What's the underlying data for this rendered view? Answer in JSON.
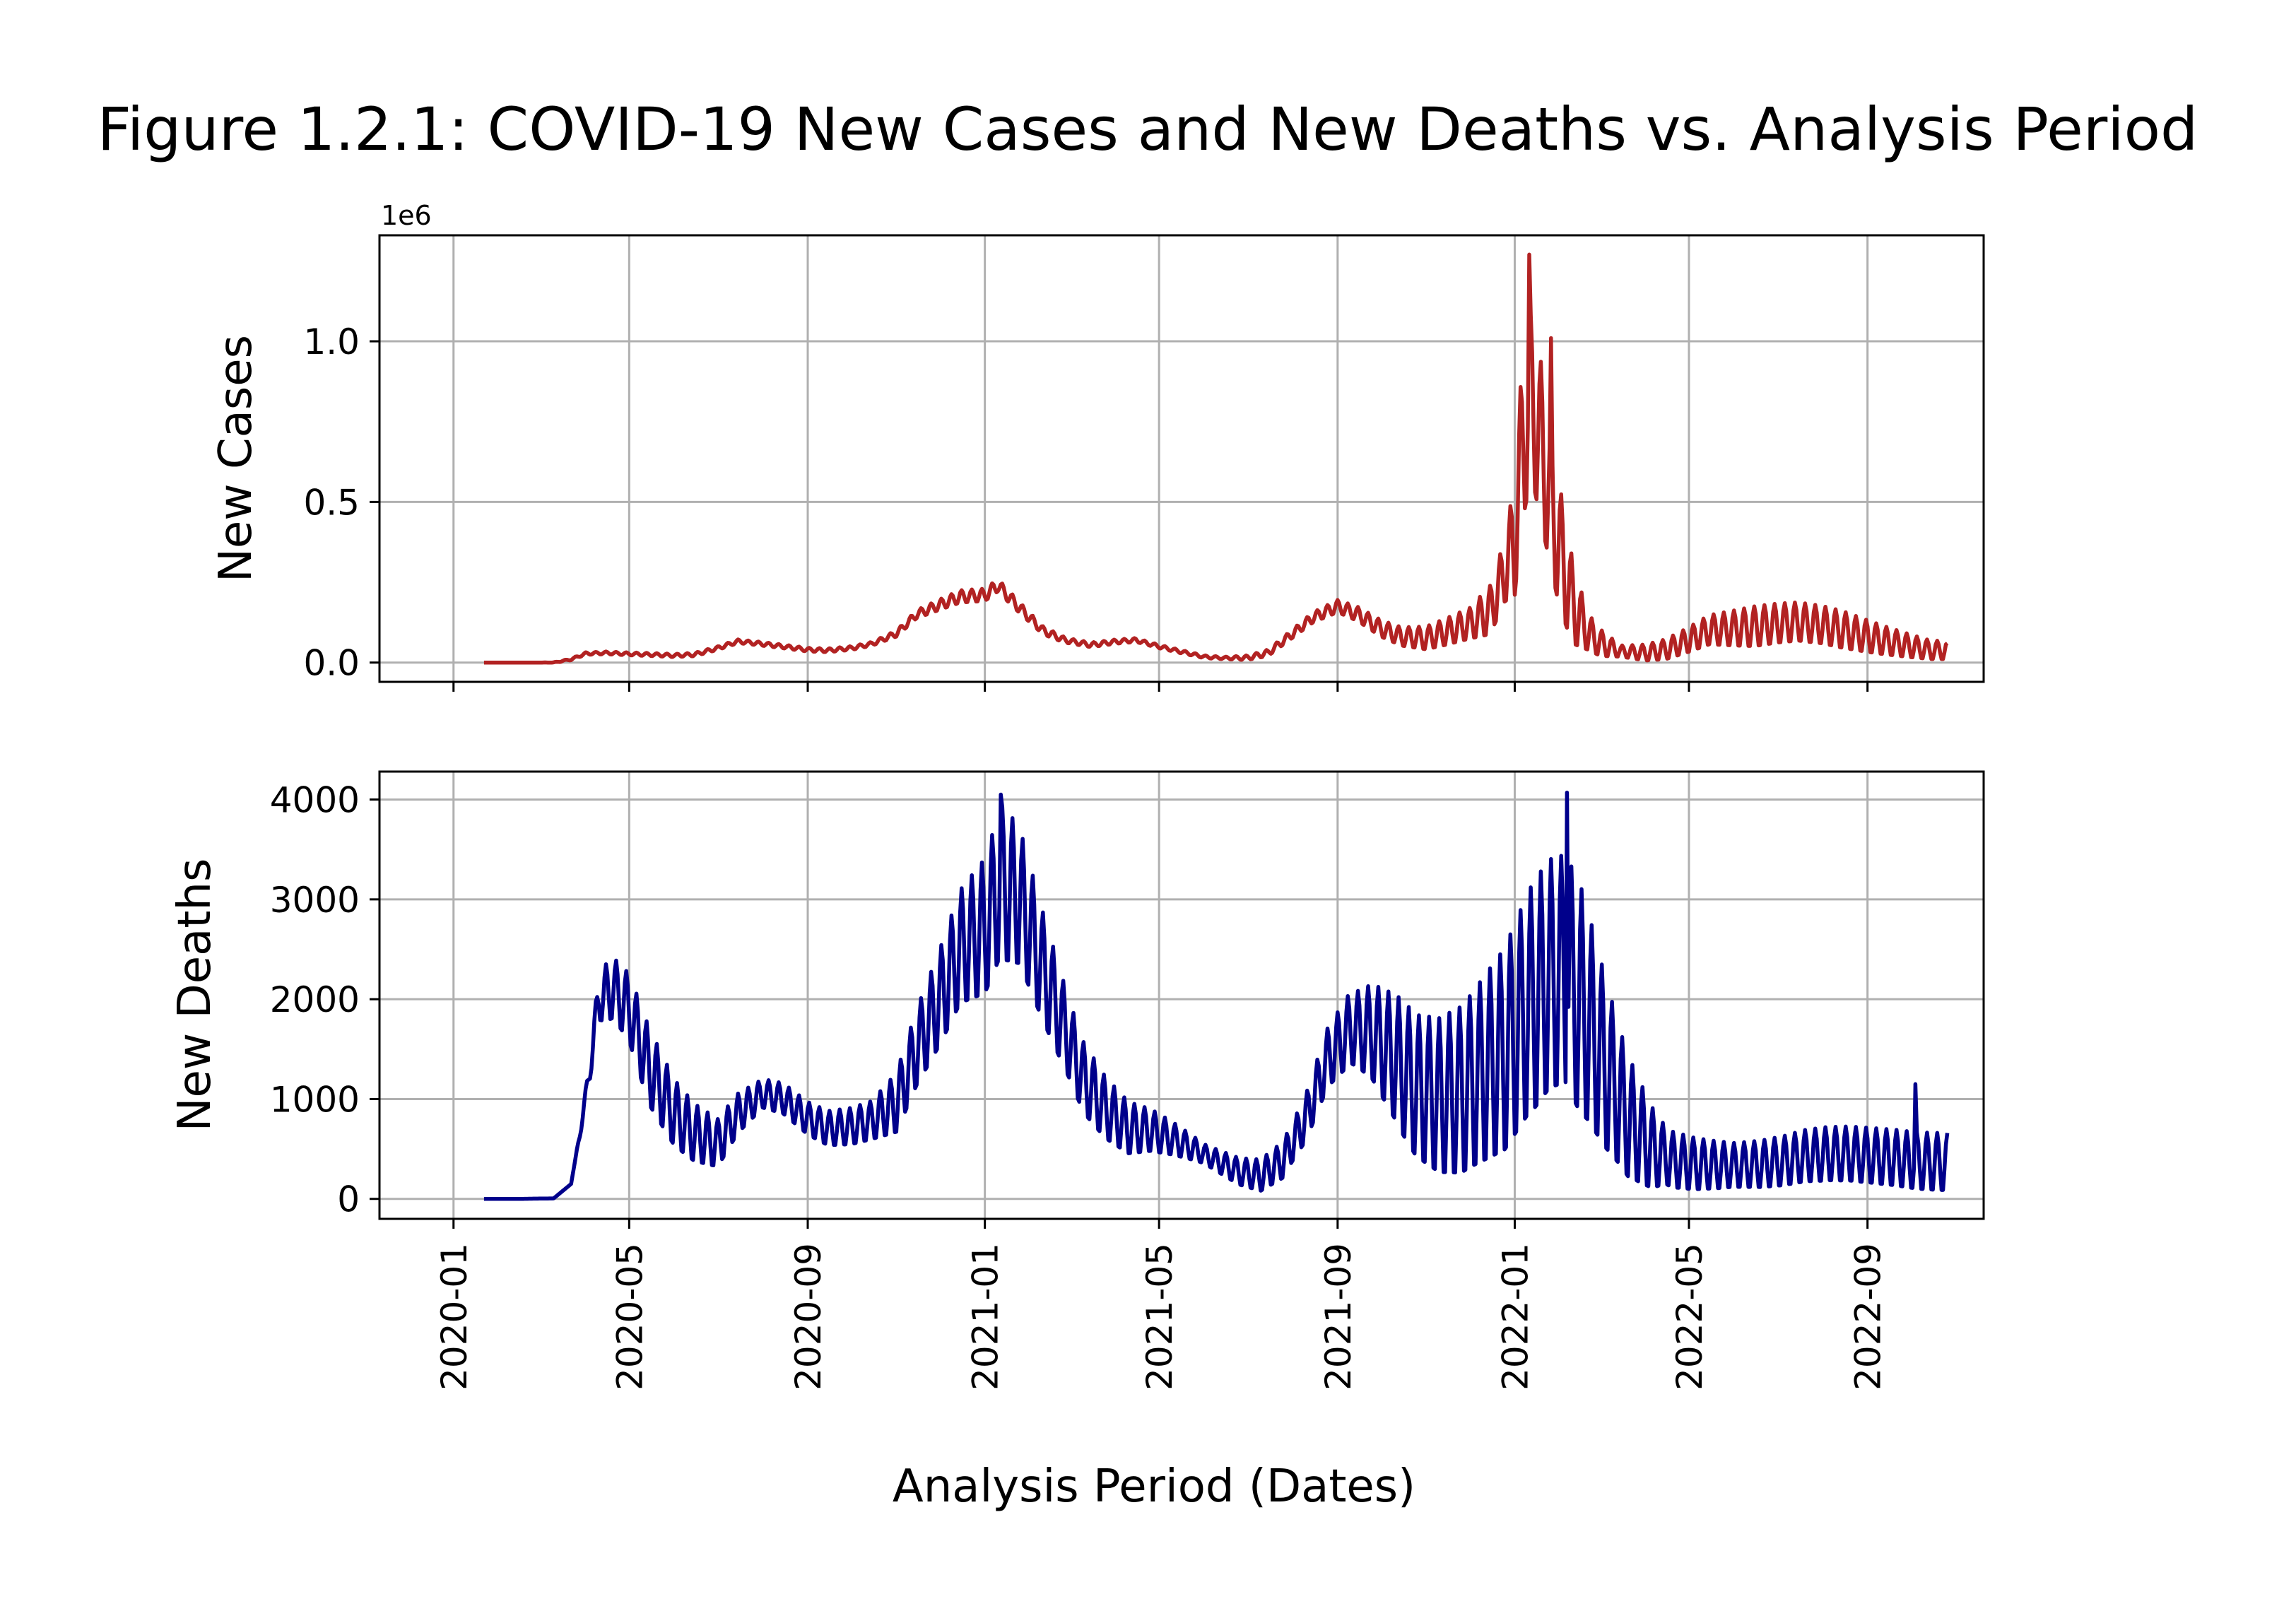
{
  "figure": {
    "title": "Figure 1.2.1: COVID-19 New Cases and New Deaths vs. Analysis Period",
    "xlabel": "Analysis Period (Dates)",
    "x_ticks": [
      "2020-01",
      "2020-05",
      "2020-09",
      "2021-01",
      "2021-05",
      "2021-09",
      "2022-01",
      "2022-05",
      "2022-09"
    ],
    "x_range": [
      "2019-11-11",
      "2022-11-20"
    ]
  },
  "chart_data": [
    {
      "type": "line",
      "title": "",
      "ylabel": "New Cases",
      "y_offset_label": "1e6",
      "yticks": [
        "0.0",
        "0.5",
        "1.0"
      ],
      "ylim": [
        -60000,
        1330000
      ],
      "grid": true,
      "series": [
        {
          "color": "#b22222",
          "points": [
            [
              "2020-01-22",
              0
            ],
            [
              "2020-02-20",
              0
            ],
            [
              "2020-03-10",
              0
            ],
            [
              "2020-03-22",
              10000
            ],
            [
              "2020-04-01",
              28000
            ],
            [
              "2020-04-15",
              30000
            ],
            [
              "2020-05-01",
              27000
            ],
            [
              "2020-05-15",
              25000
            ],
            [
              "2020-06-01",
              22000
            ],
            [
              "2020-06-15",
              25000
            ],
            [
              "2020-07-01",
              45000
            ],
            [
              "2020-07-15",
              66000
            ],
            [
              "2020-08-01",
              58000
            ],
            [
              "2020-08-15",
              50000
            ],
            [
              "2020-09-01",
              40000
            ],
            [
              "2020-09-15",
              38000
            ],
            [
              "2020-10-01",
              45000
            ],
            [
              "2020-10-15",
              58000
            ],
            [
              "2020-11-01",
              90000
            ],
            [
              "2020-11-15",
              150000
            ],
            [
              "2020-12-01",
              180000
            ],
            [
              "2020-12-15",
              205000
            ],
            [
              "2021-01-01",
              210000
            ],
            [
              "2021-01-10",
              240000
            ],
            [
              "2021-01-25",
              170000
            ],
            [
              "2021-02-10",
              100000
            ],
            [
              "2021-02-25",
              70000
            ],
            [
              "2021-03-15",
              55000
            ],
            [
              "2021-04-01",
              65000
            ],
            [
              "2021-04-15",
              70000
            ],
            [
              "2021-05-01",
              50000
            ],
            [
              "2021-05-15",
              35000
            ],
            [
              "2021-06-01",
              18000
            ],
            [
              "2021-06-15",
              14000
            ],
            [
              "2021-07-01",
              15000
            ],
            [
              "2021-07-15",
              30000
            ],
            [
              "2021-08-01",
              90000
            ],
            [
              "2021-08-15",
              140000
            ],
            [
              "2021-09-01",
              175000
            ],
            [
              "2021-09-15",
              150000
            ],
            [
              "2021-10-01",
              105000
            ],
            [
              "2021-10-15",
              80000
            ],
            [
              "2021-11-01",
              75000
            ],
            [
              "2021-11-15",
              95000
            ],
            [
              "2021-12-01",
              120000
            ],
            [
              "2021-12-15",
              160000
            ],
            [
              "2021-12-25",
              280000
            ],
            [
              "2022-01-01",
              380000
            ],
            [
              "2022-01-05",
              620000
            ],
            [
              "2022-01-10",
              800000
            ],
            [
              "2022-01-15",
              780000
            ],
            [
              "2022-01-22",
              600000
            ],
            [
              "2022-02-01",
              350000
            ],
            [
              "2022-02-10",
              180000
            ],
            [
              "2022-02-20",
              95000
            ],
            [
              "2022-03-01",
              60000
            ],
            [
              "2022-03-15",
              35000
            ],
            [
              "2022-04-01",
              30000
            ],
            [
              "2022-04-15",
              40000
            ],
            [
              "2022-05-01",
              70000
            ],
            [
              "2022-05-15",
              100000
            ],
            [
              "2022-06-01",
              105000
            ],
            [
              "2022-06-15",
              110000
            ],
            [
              "2022-07-01",
              120000
            ],
            [
              "2022-07-15",
              125000
            ],
            [
              "2022-08-01",
              115000
            ],
            [
              "2022-08-15",
              100000
            ],
            [
              "2022-09-01",
              80000
            ],
            [
              "2022-09-15",
              65000
            ],
            [
              "2022-10-01",
              50000
            ],
            [
              "2022-10-15",
              38000
            ]
          ],
          "weekly_oscillation_amplitude": [
            [
              "2020-01-22",
              0
            ],
            [
              "2020-03-01",
              0
            ],
            [
              "2020-04-01",
              4000
            ],
            [
              "2020-07-15",
              6000
            ],
            [
              "2020-10-15",
              6000
            ],
            [
              "2020-12-15",
              20000
            ],
            [
              "2021-01-15",
              20000
            ],
            [
              "2021-03-01",
              8000
            ],
            [
              "2021-06-15",
              4000
            ],
            [
              "2021-09-01",
              20000
            ],
            [
              "2021-10-15",
              30000
            ],
            [
              "2021-12-01",
              50000
            ],
            [
              "2021-12-25",
              100000
            ],
            [
              "2022-01-10",
              300000
            ],
            [
              "2022-02-01",
              200000
            ],
            [
              "2022-02-20",
              60000
            ],
            [
              "2022-03-15",
              18000
            ],
            [
              "2022-05-01",
              40000
            ],
            [
              "2022-06-15",
              65000
            ],
            [
              "2022-08-15",
              60000
            ],
            [
              "2022-10-15",
              30000
            ]
          ],
          "peaks": [
            [
              "2022-01-11",
              1270000
            ],
            [
              "2022-01-26",
              1010000
            ]
          ],
          "end": [
            "2022-10-26",
            60000
          ]
        }
      ]
    },
    {
      "type": "line",
      "title": "",
      "ylabel": "New Deaths",
      "yticks": [
        "0",
        "1000",
        "2000",
        "3000",
        "4000"
      ],
      "ylim": [
        -200,
        4280
      ],
      "grid": true,
      "series": [
        {
          "color": "#00008b",
          "points": [
            [
              "2020-01-22",
              0
            ],
            [
              "2020-02-15",
              0
            ],
            [
              "2020-03-10",
              5
            ],
            [
              "2020-03-22",
              150
            ],
            [
              "2020-04-01",
              1000
            ],
            [
              "2020-04-10",
              2000
            ],
            [
              "2020-04-20",
              2100
            ],
            [
              "2020-05-01",
              1900
            ],
            [
              "2020-05-15",
              1300
            ],
            [
              "2020-06-01",
              850
            ],
            [
              "2020-06-15",
              650
            ],
            [
              "2020-07-01",
              550
            ],
            [
              "2020-07-15",
              850
            ],
            [
              "2020-08-01",
              1050
            ],
            [
              "2020-08-15",
              1000
            ],
            [
              "2020-09-01",
              800
            ],
            [
              "2020-09-15",
              700
            ],
            [
              "2020-10-01",
              720
            ],
            [
              "2020-10-15",
              780
            ],
            [
              "2020-11-01",
              950
            ],
            [
              "2020-11-15",
              1500
            ],
            [
              "2020-12-01",
              2000
            ],
            [
              "2020-12-15",
              2500
            ],
            [
              "2021-01-01",
              2700
            ],
            [
              "2021-01-12",
              3150
            ],
            [
              "2021-01-25",
              3000
            ],
            [
              "2021-02-10",
              2300
            ],
            [
              "2021-02-25",
              1700
            ],
            [
              "2021-03-10",
              1200
            ],
            [
              "2021-03-25",
              900
            ],
            [
              "2021-04-10",
              700
            ],
            [
              "2021-04-25",
              680
            ],
            [
              "2021-05-10",
              600
            ],
            [
              "2021-05-25",
              500
            ],
            [
              "2021-06-10",
              380
            ],
            [
              "2021-06-25",
              270
            ],
            [
              "2021-07-10",
              230
            ],
            [
              "2021-07-25",
              380
            ],
            [
              "2021-08-10",
              800
            ],
            [
              "2021-08-25",
              1400
            ],
            [
              "2021-09-10",
              1700
            ],
            [
              "2021-09-25",
              1650
            ],
            [
              "2021-10-10",
              1400
            ],
            [
              "2021-10-25",
              1100
            ],
            [
              "2021-11-10",
              1000
            ],
            [
              "2021-11-25",
              1050
            ],
            [
              "2021-12-10",
              1250
            ],
            [
              "2021-12-25",
              1450
            ],
            [
              "2022-01-10",
              1900
            ],
            [
              "2022-01-25",
              2200
            ],
            [
              "2022-02-05",
              2250
            ],
            [
              "2022-02-20",
              1800
            ],
            [
              "2022-03-05",
              1300
            ],
            [
              "2022-03-20",
              800
            ],
            [
              "2022-04-05",
              500
            ],
            [
              "2022-04-20",
              380
            ],
            [
              "2022-05-05",
              340
            ],
            [
              "2022-05-20",
              330
            ],
            [
              "2022-06-05",
              330
            ],
            [
              "2022-06-20",
              340
            ],
            [
              "2022-07-05",
              370
            ],
            [
              "2022-07-20",
              420
            ],
            [
              "2022-08-05",
              440
            ],
            [
              "2022-08-20",
              440
            ],
            [
              "2022-09-05",
              420
            ],
            [
              "2022-09-20",
              400
            ],
            [
              "2022-10-05",
              370
            ],
            [
              "2022-10-20",
              360
            ]
          ],
          "weekly_oscillation_amplitude": [
            [
              "2020-01-22",
              0
            ],
            [
              "2020-03-25",
              0
            ],
            [
              "2020-04-15",
              300
            ],
            [
              "2020-05-15",
              400
            ],
            [
              "2020-08-01",
              150
            ],
            [
              "2020-10-15",
              200
            ],
            [
              "2020-12-01",
              500
            ],
            [
              "2021-01-15",
              800
            ],
            [
              "2021-03-01",
              400
            ],
            [
              "2021-06-01",
              100
            ],
            [
              "2021-08-01",
              200
            ],
            [
              "2021-09-15",
              400
            ],
            [
              "2021-10-15",
              700
            ],
            [
              "2021-12-01",
              900
            ],
            [
              "2022-01-15",
              1200
            ],
            [
              "2022-02-15",
              1200
            ],
            [
              "2022-03-15",
              700
            ],
            [
              "2022-04-15",
              300
            ],
            [
              "2022-06-01",
              230
            ],
            [
              "2022-08-01",
              280
            ],
            [
              "2022-10-20",
              300
            ]
          ],
          "peaks": [
            [
              "2021-01-12",
              4050
            ],
            [
              "2022-02-06",
              4070
            ],
            [
              "2022-10-04",
              1150
            ]
          ],
          "end": [
            "2022-10-26",
            660
          ]
        }
      ]
    }
  ]
}
